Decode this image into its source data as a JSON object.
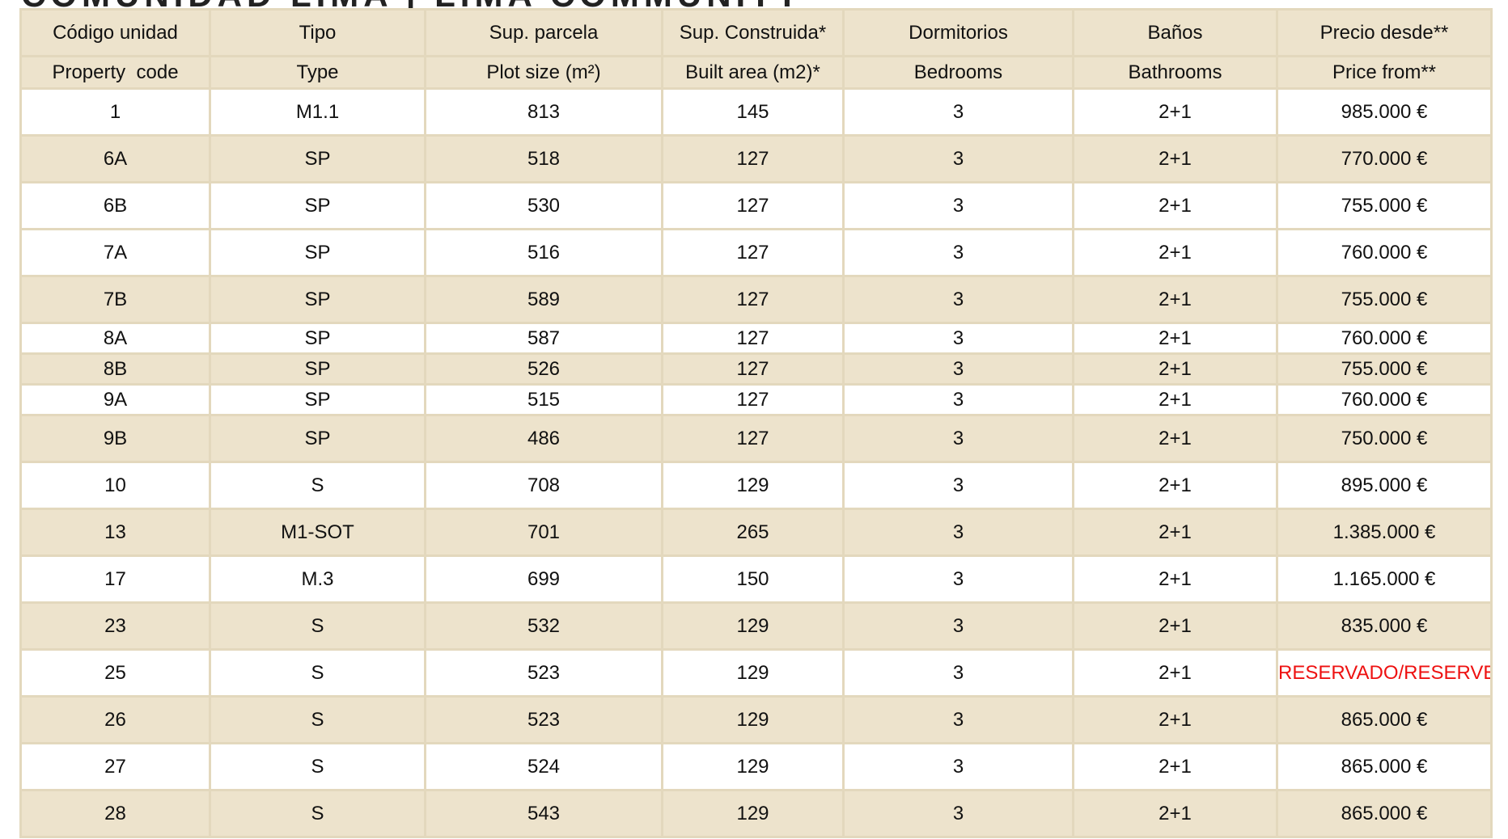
{
  "page_heading": "COMUNIDAD LIMA | LIMA COMMUNITY",
  "colors": {
    "header_bg": "#ede3cc",
    "alt_row_bg": "#ede3cc",
    "border": "#e3d8bd",
    "reserved_text": "#ee1111"
  },
  "table": {
    "headers": [
      {
        "es": "Código unidad",
        "en": "Property  code"
      },
      {
        "es": "Tipo",
        "en": "Type"
      },
      {
        "es": "Sup. parcela",
        "en": "Plot size (m²)"
      },
      {
        "es": "Sup. Construida*",
        "en": "Built area (m2)*"
      },
      {
        "es": "Dormitorios",
        "en": "Bedrooms"
      },
      {
        "es": "Baños",
        "en": "Bathrooms"
      },
      {
        "es": "Precio desde**",
        "en": "Price from**"
      }
    ],
    "rows": [
      {
        "code": "1",
        "type": "M1.1",
        "plot": "813",
        "built": "145",
        "bedrooms": "3",
        "bathrooms": "2+1",
        "price": "985.000 €"
      },
      {
        "code": "6A",
        "type": "SP",
        "plot": "518",
        "built": "127",
        "bedrooms": "3",
        "bathrooms": "2+1",
        "price": "770.000 €"
      },
      {
        "code": "6B",
        "type": "SP",
        "plot": "530",
        "built": "127",
        "bedrooms": "3",
        "bathrooms": "2+1",
        "price": "755.000 €"
      },
      {
        "code": "7A",
        "type": "SP",
        "plot": "516",
        "built": "127",
        "bedrooms": "3",
        "bathrooms": "2+1",
        "price": "760.000 €"
      },
      {
        "code": "7B",
        "type": "SP",
        "plot": "589",
        "built": "127",
        "bedrooms": "3",
        "bathrooms": "2+1",
        "price": "755.000 €"
      },
      {
        "code": "8A",
        "type": "SP",
        "plot": "587",
        "built": "127",
        "bedrooms": "3",
        "bathrooms": "2+1",
        "price": "760.000 €"
      },
      {
        "code": "8B",
        "type": "SP",
        "plot": "526",
        "built": "127",
        "bedrooms": "3",
        "bathrooms": "2+1",
        "price": "755.000 €"
      },
      {
        "code": "9A",
        "type": "SP",
        "plot": "515",
        "built": "127",
        "bedrooms": "3",
        "bathrooms": "2+1",
        "price": "760.000 €"
      },
      {
        "code": "9B",
        "type": "SP",
        "plot": "486",
        "built": "127",
        "bedrooms": "3",
        "bathrooms": "2+1",
        "price": "750.000 €"
      },
      {
        "code": "10",
        "type": "S",
        "plot": "708",
        "built": "129",
        "bedrooms": "3",
        "bathrooms": "2+1",
        "price": "895.000 €"
      },
      {
        "code": "13",
        "type": "M1-SOT",
        "plot": "701",
        "built": "265",
        "bedrooms": "3",
        "bathrooms": "2+1",
        "price": "1.385.000 €"
      },
      {
        "code": "17",
        "type": "M.3",
        "plot": "699",
        "built": "150",
        "bedrooms": "3",
        "bathrooms": "2+1",
        "price": "1.165.000 €"
      },
      {
        "code": "23",
        "type": "S",
        "plot": "532",
        "built": "129",
        "bedrooms": "3",
        "bathrooms": "2+1",
        "price": "835.000 €"
      },
      {
        "code": "25",
        "type": "S",
        "plot": "523",
        "built": "129",
        "bedrooms": "3",
        "bathrooms": "2+1",
        "price": "RESERVADO/RESERVED"
      },
      {
        "code": "26",
        "type": "S",
        "plot": "523",
        "built": "129",
        "bedrooms": "3",
        "bathrooms": "2+1",
        "price": "865.000 €"
      },
      {
        "code": "27",
        "type": "S",
        "plot": "524",
        "built": "129",
        "bedrooms": "3",
        "bathrooms": "2+1",
        "price": "865.000 €"
      },
      {
        "code": "28",
        "type": "S",
        "plot": "543",
        "built": "129",
        "bedrooms": "3",
        "bathrooms": "2+1",
        "price": "865.000 €"
      }
    ]
  }
}
